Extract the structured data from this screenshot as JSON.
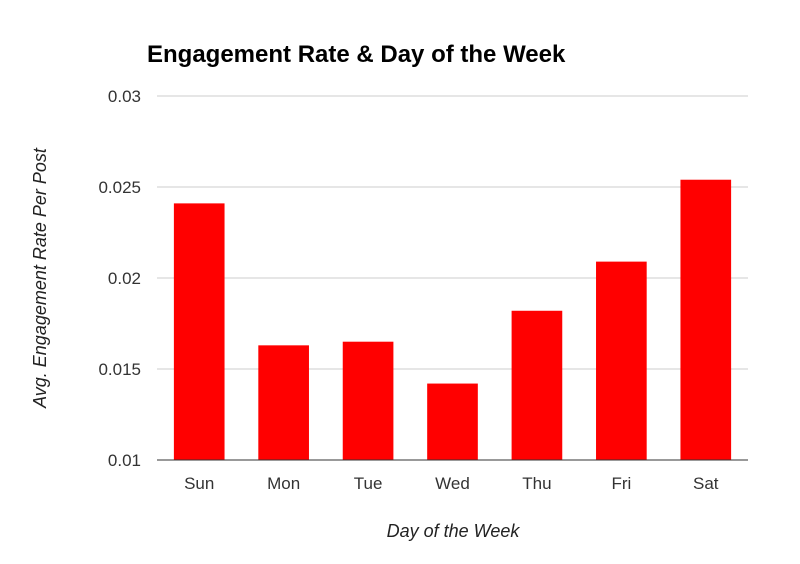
{
  "chart_data": {
    "type": "bar",
    "title": "Engagement Rate & Day of the Week",
    "xlabel": "Day of the Week",
    "ylabel": "Avg. Engagement Rate Per Post",
    "categories": [
      "Sun",
      "Mon",
      "Tue",
      "Wed",
      "Thu",
      "Fri",
      "Sat"
    ],
    "values": [
      0.0241,
      0.0163,
      0.0165,
      0.0142,
      0.0182,
      0.0209,
      0.0254
    ],
    "ylim": [
      0.01,
      0.03
    ],
    "yticks": [
      "0.01",
      "0.015",
      "0.02",
      "0.025",
      "0.03"
    ],
    "grid": true,
    "legend": "none",
    "bar_color": "#ff0000"
  }
}
